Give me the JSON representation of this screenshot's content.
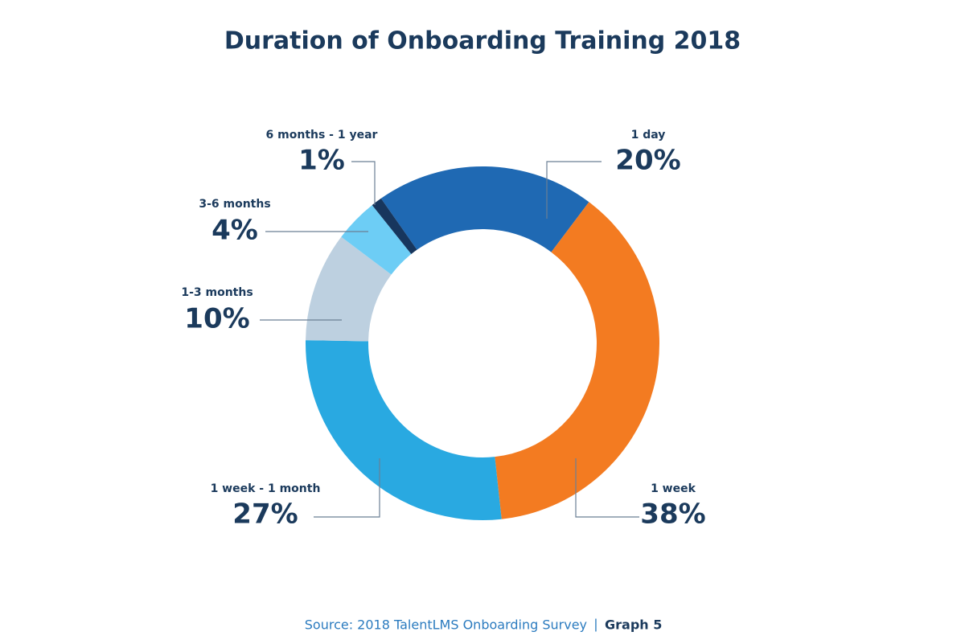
{
  "chart_data": {
    "type": "donut",
    "title": "Duration of Onboarding Training 2018",
    "categories": [
      "1 day",
      "1 week",
      "1 week - 1 month",
      "1-3 months",
      "3-6 months",
      "6 months - 1 year"
    ],
    "values": [
      20,
      38,
      27,
      10,
      4,
      1
    ],
    "value_labels": [
      "20%",
      "38%",
      "27%",
      "10%",
      "4%",
      "1%"
    ],
    "colors": [
      "#1f69b3",
      "#f37b21",
      "#29a9e1",
      "#bdd0e0",
      "#6dcdf5",
      "#17365d"
    ],
    "source": "Source: 2018 TalentLMS Onboarding Survey",
    "source_separator": "|",
    "graph_label": "Graph 5"
  }
}
